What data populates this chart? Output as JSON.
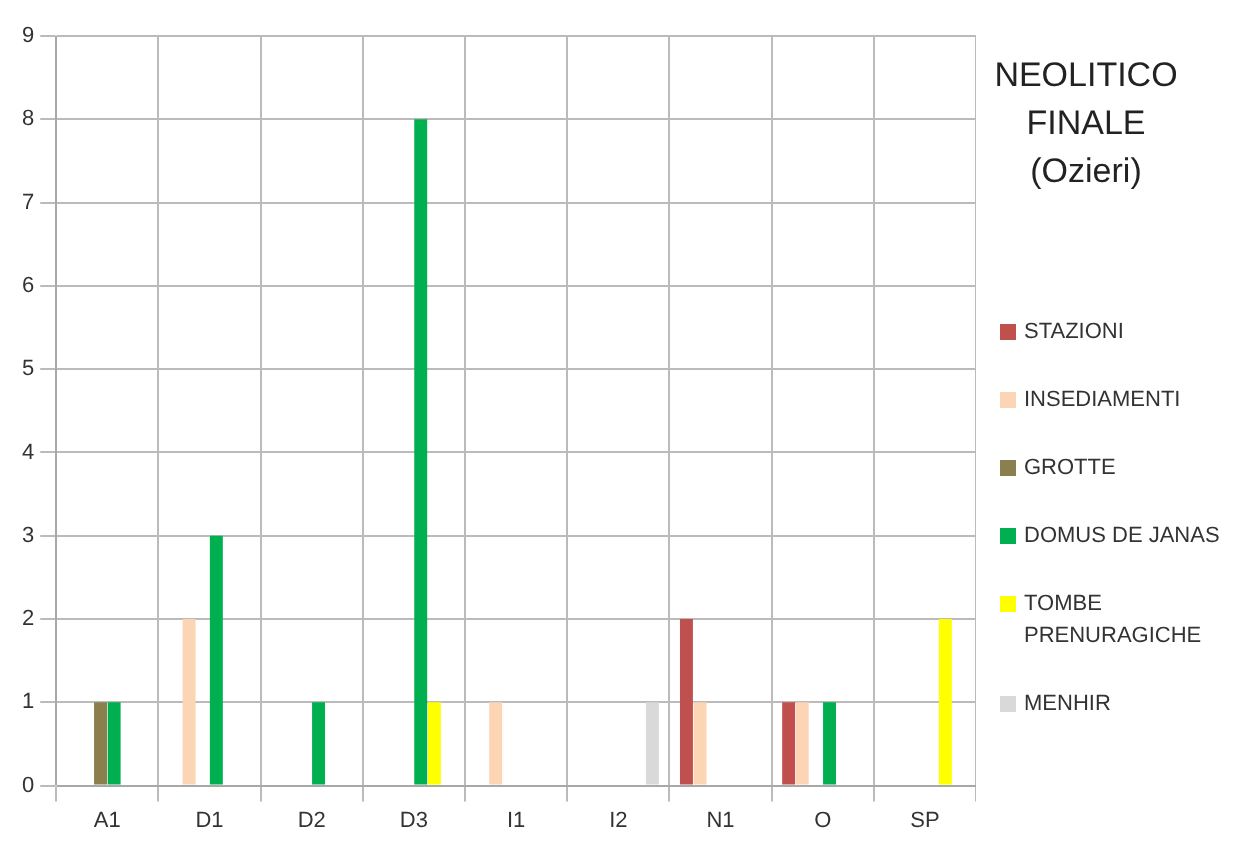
{
  "chart_data": {
    "type": "bar",
    "title": "NEOLITICO\nFINALE\n(Ozieri)",
    "categories": [
      "A1",
      "D1",
      "D2",
      "D3",
      "I1",
      "I2",
      "N1",
      "O",
      "SP"
    ],
    "series": [
      {
        "name": "STAZIONI",
        "color": "#c0504d",
        "values": [
          0,
          0,
          0,
          0,
          0,
          0,
          2,
          1,
          0
        ]
      },
      {
        "name": "INSEDIAMENTI",
        "color": "#fcd5b5",
        "values": [
          0,
          2,
          0,
          0,
          1,
          0,
          1,
          1,
          0
        ]
      },
      {
        "name": "GROTTE",
        "color": "#8c7f4e",
        "values": [
          1,
          0,
          0,
          0,
          0,
          0,
          0,
          0,
          0
        ]
      },
      {
        "name": "DOMUS DE JANAS",
        "color": "#00b050",
        "values": [
          1,
          3,
          1,
          8,
          0,
          0,
          0,
          1,
          0
        ]
      },
      {
        "name": "TOMBE PRENURAGICHE",
        "color": "#ffff00",
        "values": [
          0,
          0,
          0,
          1,
          0,
          0,
          0,
          0,
          2
        ]
      },
      {
        "name": "MENHIR",
        "color": "#d9d9d9",
        "values": [
          0,
          0,
          0,
          0,
          0,
          1,
          0,
          0,
          0
        ]
      }
    ],
    "ylim": [
      0,
      9
    ],
    "yticks": [
      0,
      1,
      2,
      3,
      4,
      5,
      6,
      7,
      8,
      9
    ],
    "grid": true,
    "legend": "right"
  }
}
